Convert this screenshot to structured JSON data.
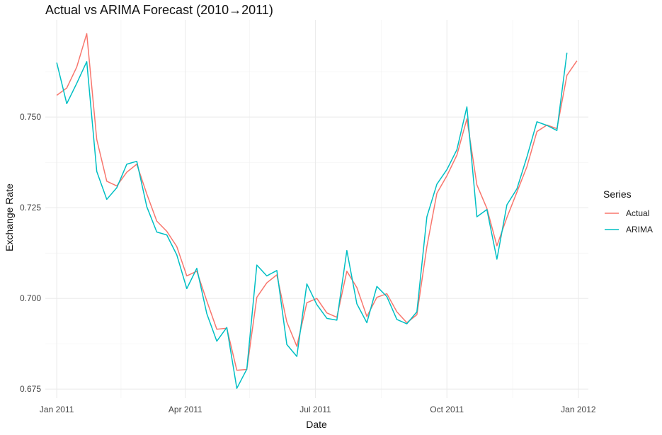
{
  "chart_data": {
    "type": "line",
    "title": "Actual vs ARIMA Forecast (2010→2011)",
    "xlabel": "Date",
    "ylabel": "Exchange Rate",
    "x_type": "date",
    "xlim": [
      "2010-12-24",
      "2012-01-08"
    ],
    "ylim": [
      0.6725,
      0.7768
    ],
    "x_ticks": [
      {
        "date": "2011-01-01",
        "label": "Jan 2011"
      },
      {
        "date": "2011-04-01",
        "label": "Apr 2011"
      },
      {
        "date": "2011-07-01",
        "label": "Jul 2011"
      },
      {
        "date": "2011-10-01",
        "label": "Oct 2011"
      },
      {
        "date": "2012-01-01",
        "label": "Jan 2012"
      }
    ],
    "x_minor": [
      "2011-02-15",
      "2011-05-16",
      "2011-08-16",
      "2011-11-16"
    ],
    "y_ticks": [
      0.675,
      0.7,
      0.725,
      0.75
    ],
    "y_minor": [
      0.6875,
      0.7125,
      0.7375,
      0.7625
    ],
    "grid": true,
    "legend": {
      "title": "Series",
      "position": "right"
    },
    "series": [
      {
        "name": "Actual",
        "color": "#F8766D",
        "points": [
          [
            "2011-01-01",
            0.756
          ],
          [
            "2011-01-08",
            0.758
          ],
          [
            "2011-01-15",
            0.7638
          ],
          [
            "2011-01-22",
            0.773
          ],
          [
            "2011-01-29",
            0.7438
          ],
          [
            "2011-02-05",
            0.7323
          ],
          [
            "2011-02-12",
            0.731
          ],
          [
            "2011-02-19",
            0.7348
          ],
          [
            "2011-02-26",
            0.737
          ],
          [
            "2011-03-05",
            0.7288
          ],
          [
            "2011-03-12",
            0.7213
          ],
          [
            "2011-03-19",
            0.7185
          ],
          [
            "2011-03-26",
            0.7143
          ],
          [
            "2011-04-02",
            0.7062
          ],
          [
            "2011-04-09",
            0.7075
          ],
          [
            "2011-04-16",
            0.6993
          ],
          [
            "2011-04-23",
            0.6915
          ],
          [
            "2011-04-30",
            0.6918
          ],
          [
            "2011-05-07",
            0.6802
          ],
          [
            "2011-05-14",
            0.6804
          ],
          [
            "2011-05-21",
            0.7003
          ],
          [
            "2011-05-28",
            0.7043
          ],
          [
            "2011-06-04",
            0.7065
          ],
          [
            "2011-06-11",
            0.6935
          ],
          [
            "2011-06-18",
            0.6868
          ],
          [
            "2011-06-25",
            0.6988
          ],
          [
            "2011-07-02",
            0.7
          ],
          [
            "2011-07-09",
            0.696
          ],
          [
            "2011-07-16",
            0.6948
          ],
          [
            "2011-07-23",
            0.7075
          ],
          [
            "2011-07-30",
            0.703
          ],
          [
            "2011-08-06",
            0.695
          ],
          [
            "2011-08-13",
            0.7003
          ],
          [
            "2011-08-20",
            0.7013
          ],
          [
            "2011-08-27",
            0.6963
          ],
          [
            "2011-09-03",
            0.6933
          ],
          [
            "2011-09-10",
            0.6955
          ],
          [
            "2011-09-17",
            0.7143
          ],
          [
            "2011-09-24",
            0.729
          ],
          [
            "2011-10-01",
            0.7338
          ],
          [
            "2011-10-08",
            0.7395
          ],
          [
            "2011-10-15",
            0.7495
          ],
          [
            "2011-10-22",
            0.7313
          ],
          [
            "2011-10-29",
            0.7248
          ],
          [
            "2011-11-05",
            0.7145
          ],
          [
            "2011-11-12",
            0.7223
          ],
          [
            "2011-11-19",
            0.7293
          ],
          [
            "2011-11-26",
            0.7363
          ],
          [
            "2011-12-03",
            0.746
          ],
          [
            "2011-12-10",
            0.7478
          ],
          [
            "2011-12-17",
            0.7468
          ],
          [
            "2011-12-24",
            0.7615
          ],
          [
            "2011-12-31",
            0.7655
          ]
        ]
      },
      {
        "name": "ARIMA",
        "color": "#00BFC4",
        "points": [
          [
            "2011-01-01",
            0.765
          ],
          [
            "2011-01-08",
            0.7537
          ],
          [
            "2011-01-15",
            0.7593
          ],
          [
            "2011-01-22",
            0.7653
          ],
          [
            "2011-01-29",
            0.735
          ],
          [
            "2011-02-05",
            0.7273
          ],
          [
            "2011-02-12",
            0.7305
          ],
          [
            "2011-02-19",
            0.737
          ],
          [
            "2011-02-26",
            0.7378
          ],
          [
            "2011-03-05",
            0.7253
          ],
          [
            "2011-03-12",
            0.7183
          ],
          [
            "2011-03-19",
            0.7175
          ],
          [
            "2011-03-26",
            0.712
          ],
          [
            "2011-04-02",
            0.7027
          ],
          [
            "2011-04-09",
            0.7083
          ],
          [
            "2011-04-16",
            0.6958
          ],
          [
            "2011-04-23",
            0.6882
          ],
          [
            "2011-04-30",
            0.692
          ],
          [
            "2011-05-07",
            0.6752
          ],
          [
            "2011-05-14",
            0.6805
          ],
          [
            "2011-05-21",
            0.7092
          ],
          [
            "2011-05-28",
            0.7062
          ],
          [
            "2011-06-04",
            0.7077
          ],
          [
            "2011-06-11",
            0.6873
          ],
          [
            "2011-06-18",
            0.684
          ],
          [
            "2011-06-25",
            0.704
          ],
          [
            "2011-07-02",
            0.6983
          ],
          [
            "2011-07-09",
            0.6945
          ],
          [
            "2011-07-16",
            0.694
          ],
          [
            "2011-07-23",
            0.7132
          ],
          [
            "2011-07-30",
            0.6985
          ],
          [
            "2011-08-06",
            0.6933
          ],
          [
            "2011-08-13",
            0.7033
          ],
          [
            "2011-08-20",
            0.7005
          ],
          [
            "2011-08-27",
            0.6942
          ],
          [
            "2011-09-03",
            0.693
          ],
          [
            "2011-09-10",
            0.6963
          ],
          [
            "2011-09-17",
            0.7225
          ],
          [
            "2011-09-24",
            0.7315
          ],
          [
            "2011-10-01",
            0.7355
          ],
          [
            "2011-10-08",
            0.741
          ],
          [
            "2011-10-15",
            0.7528
          ],
          [
            "2011-10-22",
            0.7225
          ],
          [
            "2011-10-29",
            0.7245
          ],
          [
            "2011-11-05",
            0.7108
          ],
          [
            "2011-11-12",
            0.7258
          ],
          [
            "2011-11-19",
            0.7302
          ],
          [
            "2011-11-26",
            0.739
          ],
          [
            "2011-12-03",
            0.7487
          ],
          [
            "2011-12-10",
            0.7477
          ],
          [
            "2011-12-17",
            0.7463
          ],
          [
            "2011-12-24",
            0.7677
          ]
        ]
      }
    ]
  }
}
